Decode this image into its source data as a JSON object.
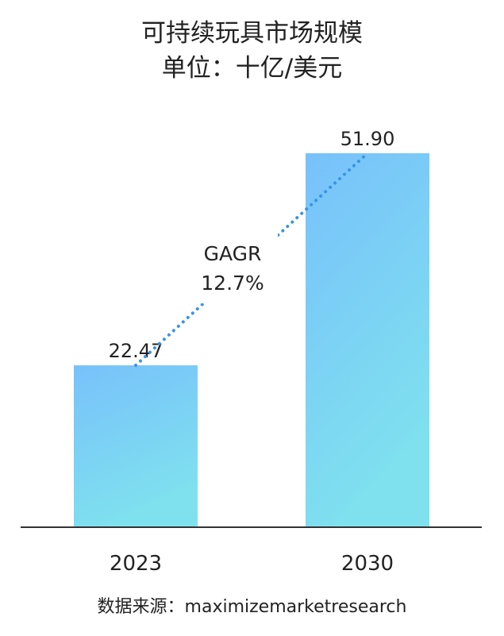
{
  "title_lines": [
    "可持续玩具市场规模",
    "单位：十亿/美元"
  ],
  "source": "数据来源：maximizemarketresearch",
  "annotation": {
    "label": "GAGR",
    "value": "12.7%",
    "color": "#3b93e6"
  },
  "colors": {
    "bar_top": "#78c1fb",
    "bar_bottom": "#7fe1ee",
    "axis": "#333333",
    "text": "#222222"
  },
  "chart_data": {
    "type": "bar",
    "categories": [
      "2023",
      "2030"
    ],
    "values": [
      22.47,
      51.9
    ],
    "value_labels": [
      "22.47",
      "51.90"
    ],
    "title": "可持续玩具市场规模",
    "subtitle": "单位：十亿/美元",
    "xlabel": "",
    "ylabel": "",
    "ylim": [
      0,
      60
    ],
    "grid": false,
    "legend": "none"
  }
}
